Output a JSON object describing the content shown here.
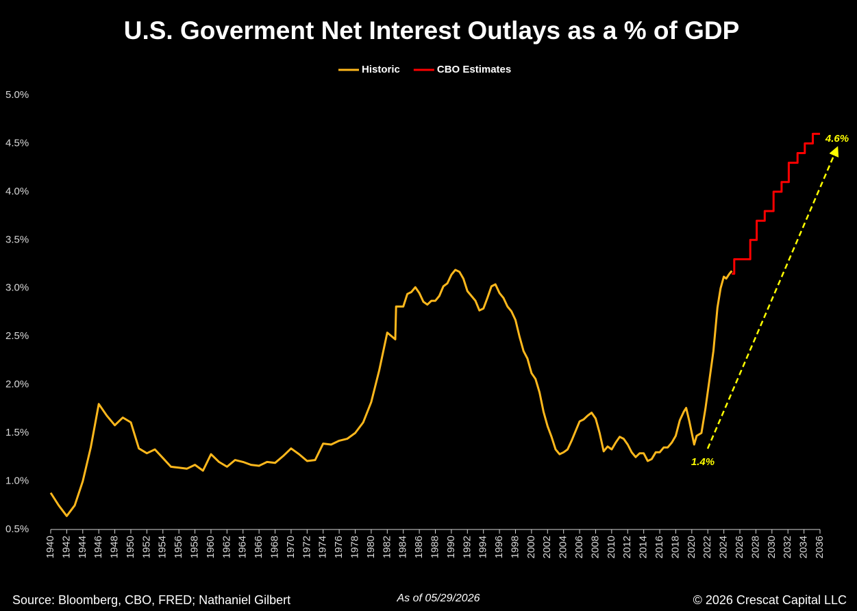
{
  "chart_data": {
    "type": "line",
    "title": "U.S. Goverment Net Interest Outlays as a % of GDP",
    "xlim": [
      1940,
      2036
    ],
    "xticks": [
      1940,
      1942,
      1944,
      1946,
      1948,
      1950,
      1952,
      1954,
      1956,
      1958,
      1960,
      1962,
      1964,
      1966,
      1968,
      1970,
      1972,
      1974,
      1976,
      1978,
      1980,
      1982,
      1984,
      1986,
      1988,
      1990,
      1992,
      1994,
      1996,
      1998,
      2000,
      2002,
      2004,
      2006,
      2008,
      2010,
      2012,
      2014,
      2016,
      2018,
      2020,
      2022,
      2024,
      2026,
      2028,
      2030,
      2032,
      2034,
      2036
    ],
    "ylim": [
      0.5,
      5.0
    ],
    "yticks": [
      {
        "value": 0.5,
        "label": "0.5%"
      },
      {
        "value": 1.0,
        "label": "1.0%"
      },
      {
        "value": 1.5,
        "label": "1.5%"
      },
      {
        "value": 2.0,
        "label": "2.0%"
      },
      {
        "value": 2.5,
        "label": "2.5%"
      },
      {
        "value": 3.0,
        "label": "3.0%"
      },
      {
        "value": 3.5,
        "label": "3.5%"
      },
      {
        "value": 4.0,
        "label": "4.0%"
      },
      {
        "value": 4.5,
        "label": "4.5%"
      },
      {
        "value": 5.0,
        "label": "5.0%"
      }
    ],
    "grid": false,
    "legend": "top",
    "series": [
      {
        "name": "Historic",
        "color": "#ffb81c",
        "x": [
          1940,
          1941,
          1942,
          1943,
          1944,
          1945,
          1946,
          1947,
          1948,
          1949,
          1950,
          1951,
          1952,
          1953,
          1954,
          1955,
          1956,
          1957,
          1958,
          1959,
          1960,
          1961,
          1962,
          1963,
          1964,
          1965,
          1966,
          1967,
          1968,
          1969,
          1970,
          1971,
          1972,
          1973,
          1974,
          1975,
          1976,
          1977,
          1978,
          1979,
          1980,
          1981,
          1982,
          1983,
          1983.1,
          1984,
          1984.5,
          1985,
          1985.5,
          1986,
          1986.5,
          1987,
          1987.5,
          1988,
          1988.5,
          1989,
          1989.5,
          1990,
          1990.5,
          1991,
          1991.5,
          1992,
          1993,
          1993.5,
          1994,
          1994.5,
          1995,
          1995.5,
          1996,
          1996.5,
          1997,
          1997.5,
          1998,
          1998.5,
          1999,
          1999.5,
          2000,
          2000.5,
          2001,
          2001.5,
          2002,
          2002.5,
          2003,
          2003.5,
          2004,
          2004.5,
          2005,
          2005.5,
          2006,
          2006.5,
          2007,
          2007.5,
          2008,
          2008.5,
          2009,
          2009.5,
          2010,
          2010.5,
          2011,
          2011.5,
          2012,
          2012.5,
          2013,
          2013.5,
          2014,
          2014.5,
          2015,
          2015.5,
          2016,
          2016.5,
          2017,
          2017.5,
          2018,
          2018.5,
          2019,
          2019.3,
          2019.7,
          2020.3,
          2020.6,
          2021.2,
          2021.7,
          2022.2,
          2022.7,
          2023.2,
          2023.6,
          2024,
          2024.3,
          2024.7,
          2025
        ],
        "values": [
          0.88,
          0.75,
          0.64,
          0.75,
          1.0,
          1.35,
          1.8,
          1.68,
          1.58,
          1.66,
          1.61,
          1.34,
          1.29,
          1.33,
          1.24,
          1.15,
          1.14,
          1.13,
          1.17,
          1.11,
          1.28,
          1.2,
          1.15,
          1.22,
          1.2,
          1.17,
          1.16,
          1.2,
          1.19,
          1.26,
          1.34,
          1.28,
          1.21,
          1.22,
          1.39,
          1.38,
          1.42,
          1.44,
          1.5,
          1.61,
          1.82,
          2.15,
          2.54,
          2.47,
          2.81,
          2.81,
          2.94,
          2.96,
          3.01,
          2.95,
          2.86,
          2.83,
          2.87,
          2.87,
          2.92,
          3.02,
          3.05,
          3.14,
          3.19,
          3.17,
          3.1,
          2.97,
          2.87,
          2.77,
          2.79,
          2.9,
          3.02,
          3.04,
          2.95,
          2.9,
          2.81,
          2.76,
          2.67,
          2.5,
          2.35,
          2.27,
          2.12,
          2.06,
          1.92,
          1.72,
          1.57,
          1.46,
          1.33,
          1.28,
          1.3,
          1.33,
          1.42,
          1.52,
          1.62,
          1.64,
          1.68,
          1.71,
          1.65,
          1.5,
          1.31,
          1.36,
          1.33,
          1.4,
          1.46,
          1.44,
          1.38,
          1.3,
          1.25,
          1.29,
          1.29,
          1.21,
          1.23,
          1.3,
          1.3,
          1.35,
          1.35,
          1.4,
          1.47,
          1.63,
          1.72,
          1.76,
          1.62,
          1.38,
          1.47,
          1.5,
          1.75,
          2.05,
          2.35,
          2.8,
          3.0,
          3.12,
          3.1,
          3.15,
          3.18
        ]
      },
      {
        "name": "CBO Estimates",
        "color": "#ff0000",
        "x": [
          2025,
          2025.3,
          2025.3,
          2027.3,
          2027.3,
          2028.1,
          2028.1,
          2029.1,
          2029.1,
          2030.2,
          2030.2,
          2031.2,
          2031.2,
          2032.1,
          2032.1,
          2033.2,
          2033.2,
          2034.1,
          2034.1,
          2035.1,
          2035.1,
          2036
        ],
        "values": [
          3.15,
          3.15,
          3.3,
          3.3,
          3.5,
          3.5,
          3.7,
          3.7,
          3.8,
          3.8,
          4.0,
          4.0,
          4.1,
          4.1,
          4.3,
          4.3,
          4.4,
          4.4,
          4.5,
          4.5,
          4.6,
          4.6
        ]
      }
    ],
    "annotations": [
      "4.6%",
      "1.4%"
    ],
    "source": "Source: Bloomberg, CBO, FRED; Nathaniel Gilbert",
    "as_of": "As of 05/29/2026",
    "copyright": "© 2026 Crescat Capital LLC"
  }
}
